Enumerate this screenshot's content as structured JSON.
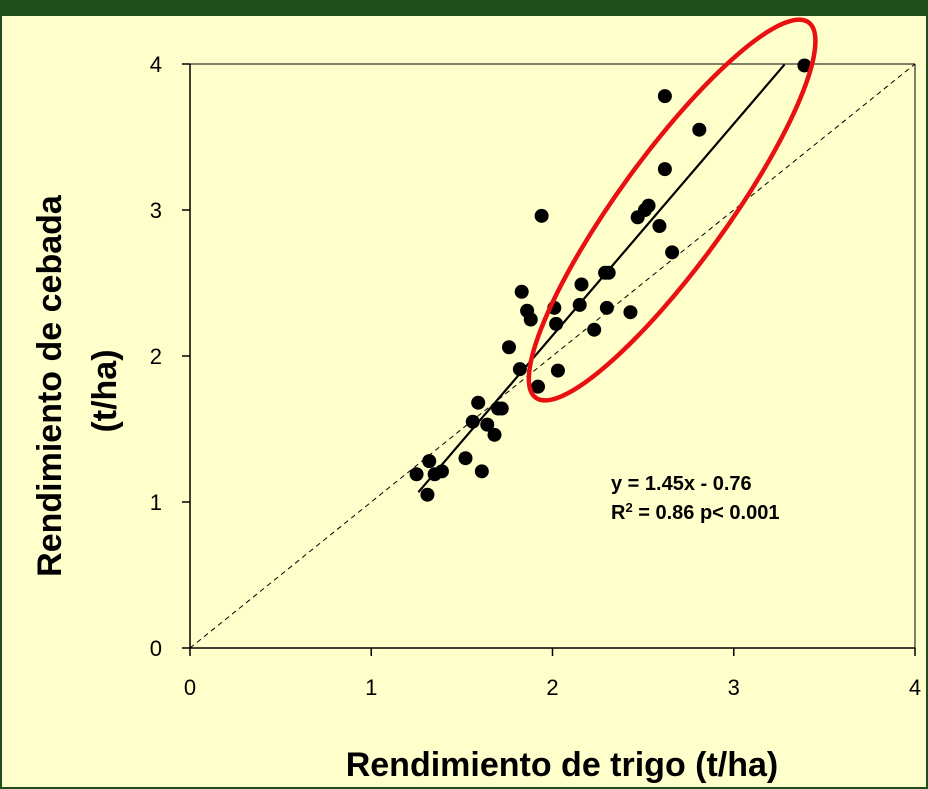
{
  "chart_data": {
    "type": "scatter",
    "xlabel": "Rendimiento de trigo (t/ha)",
    "ylabel_line1": "Rendimiento de cebada",
    "ylabel_line2": "(t/ha)",
    "xlim": [
      0,
      4
    ],
    "ylim": [
      0,
      4
    ],
    "xticks": [
      "0",
      "1",
      "2",
      "3",
      "4"
    ],
    "yticks": [
      "0",
      "1",
      "2",
      "3",
      "4"
    ],
    "grid": false,
    "regression": {
      "slope": 1.45,
      "intercept": -0.76,
      "x_range": [
        1.26,
        3.28
      ]
    },
    "reference_line": "1:1",
    "annotation": {
      "equation": "y = 1.45x - 0.76",
      "r2_prefix": "R",
      "r2_sup": "2",
      "r2_rest": " = 0.86 p< 0.001"
    },
    "highlight_ellipse": {
      "center": [
        2.66,
        3.0
      ],
      "angle_deg": 54,
      "rx_units": 1.28,
      "ry_units": 0.3,
      "color": "#e81010"
    },
    "points": [
      [
        1.25,
        1.19
      ],
      [
        1.31,
        1.05
      ],
      [
        1.32,
        1.28
      ],
      [
        1.35,
        1.19
      ],
      [
        1.39,
        1.21
      ],
      [
        1.52,
        1.3
      ],
      [
        1.56,
        1.55
      ],
      [
        1.59,
        1.68
      ],
      [
        1.61,
        1.21
      ],
      [
        1.64,
        1.53
      ],
      [
        1.68,
        1.46
      ],
      [
        1.7,
        1.64
      ],
      [
        1.72,
        1.64
      ],
      [
        1.76,
        2.06
      ],
      [
        1.82,
        1.91
      ],
      [
        1.83,
        2.44
      ],
      [
        1.86,
        2.31
      ],
      [
        1.88,
        2.25
      ],
      [
        1.92,
        1.79
      ],
      [
        1.94,
        2.96
      ],
      [
        2.01,
        2.33
      ],
      [
        2.02,
        2.22
      ],
      [
        2.03,
        1.9
      ],
      [
        2.15,
        2.35
      ],
      [
        2.16,
        2.49
      ],
      [
        2.23,
        2.18
      ],
      [
        2.29,
        2.57
      ],
      [
        2.3,
        2.33
      ],
      [
        2.31,
        2.57
      ],
      [
        2.43,
        2.3
      ],
      [
        2.47,
        2.95
      ],
      [
        2.51,
        3.0
      ],
      [
        2.53,
        3.03
      ],
      [
        2.59,
        2.89
      ],
      [
        2.62,
        3.28
      ],
      [
        2.62,
        3.78
      ],
      [
        2.66,
        2.71
      ],
      [
        2.81,
        3.55
      ],
      [
        3.39,
        3.99
      ]
    ],
    "colors": {
      "background": "#1f4d1c",
      "plot_bg": "#ffffcc",
      "points": "#000000",
      "ellipse": "#e81010"
    }
  }
}
